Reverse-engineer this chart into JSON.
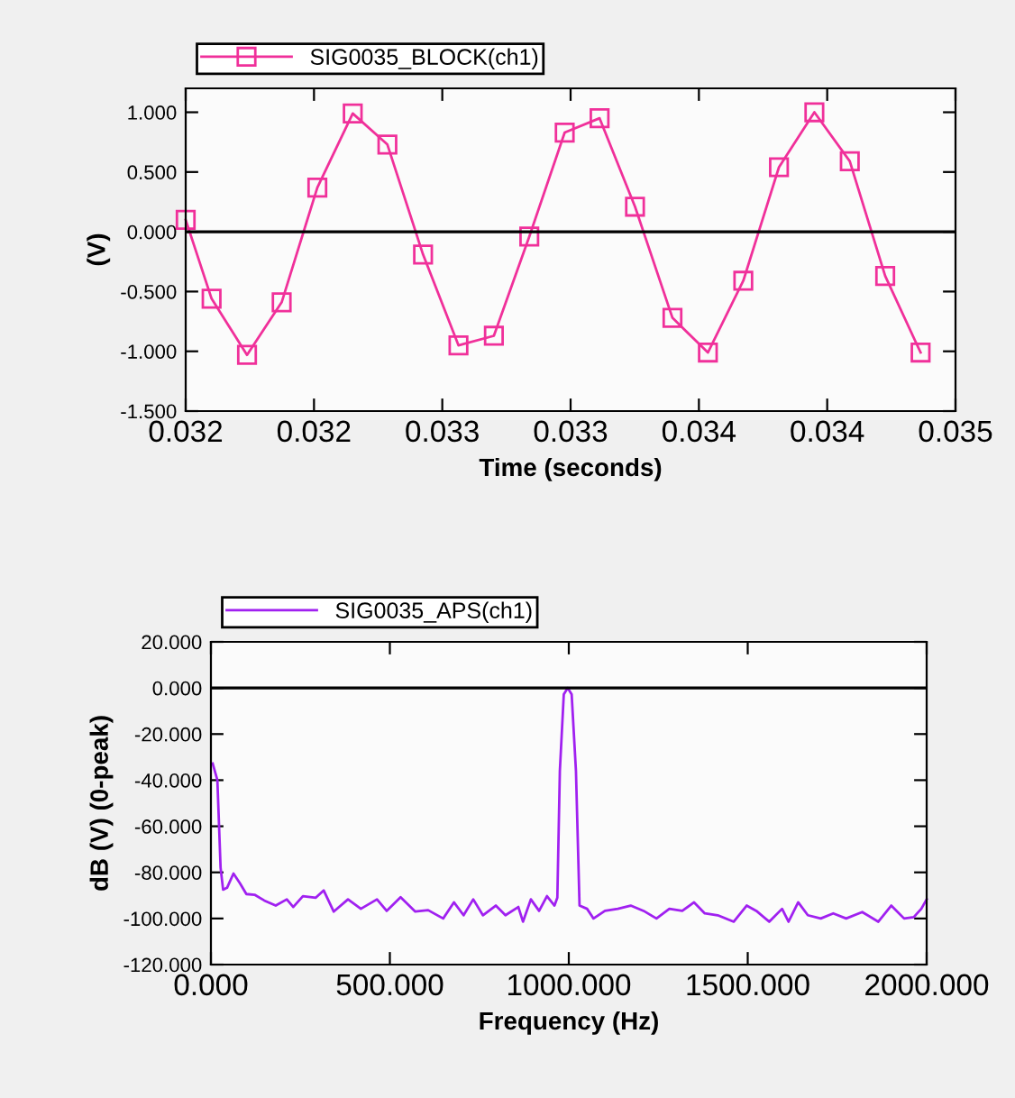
{
  "chart_data": [
    {
      "type": "line",
      "xlabel": "Time (seconds)",
      "ylabel": "(V)",
      "legend": "top",
      "marker": "square",
      "line_style": "solid",
      "x": [
        0.0315,
        0.031601,
        0.031739,
        0.031874,
        0.032013,
        0.032151,
        0.032286,
        0.032425,
        0.032563,
        0.032701,
        0.032839,
        0.032977,
        0.033113,
        0.033251,
        0.033397,
        0.033535,
        0.033673,
        0.033812,
        0.03395,
        0.034088,
        0.034226,
        0.034364
      ],
      "series": [
        {
          "name": "SIG0035_BLOCK(ch1)",
          "color": "#f0309a",
          "values": [
            0.1,
            -0.56,
            -1.03,
            -0.59,
            0.37,
            0.99,
            0.73,
            -0.19,
            -0.95,
            -0.87,
            -0.04,
            0.83,
            0.95,
            0.21,
            -0.72,
            -1.01,
            -0.41,
            0.54,
            1.0,
            0.59,
            -0.37,
            -1.01
          ]
        }
      ],
      "xlim": [
        0.0315,
        0.0345
      ],
      "ylim": [
        -1.5,
        1.2
      ],
      "xticks": [
        {
          "value": 0.0315,
          "label": "0.032"
        },
        {
          "value": 0.032,
          "label": "0.032"
        },
        {
          "value": 0.0325,
          "label": "0.033"
        },
        {
          "value": 0.033,
          "label": "0.033"
        },
        {
          "value": 0.0335,
          "label": "0.034"
        },
        {
          "value": 0.034,
          "label": "0.034"
        },
        {
          "value": 0.0345,
          "label": "0.035"
        }
      ],
      "yticks": [
        {
          "value": -1.5,
          "label": "-1.500"
        },
        {
          "value": -1.0,
          "label": "-1.000"
        },
        {
          "value": -0.5,
          "label": "-0.500"
        },
        {
          "value": 0,
          "label": "0.000"
        },
        {
          "value": 0.5,
          "label": "0.500"
        },
        {
          "value": 1.0,
          "label": "1.000"
        }
      ],
      "ref_lines": [
        {
          "axis": "y",
          "value": 0,
          "color": "#000000"
        }
      ]
    },
    {
      "type": "line",
      "xlabel": "Frequency (Hz)",
      "ylabel": "dB (V) (0-peak)",
      "legend": "top",
      "line_style": "solid",
      "x": [
        5,
        18,
        27,
        34,
        45,
        63,
        81,
        99,
        122,
        149,
        181,
        212,
        230,
        257,
        293,
        315,
        343,
        383,
        419,
        464,
        491,
        530,
        571,
        607,
        649,
        679,
        706,
        733,
        760,
        796,
        823,
        859,
        872,
        894,
        917,
        939,
        960,
        968,
        975,
        986,
        997,
        1008,
        1020,
        1030,
        1051,
        1069,
        1101,
        1137,
        1173,
        1209,
        1245,
        1281,
        1317,
        1350,
        1380,
        1416,
        1461,
        1497,
        1524,
        1560,
        1596,
        1614,
        1641,
        1668,
        1704,
        1739,
        1775,
        1820,
        1865,
        1901,
        1937,
        1964,
        1985,
        2000
      ],
      "series": [
        {
          "name": "SIG0035_APS(ch1)",
          "color": "#a020f0",
          "values": [
            -32.8,
            -40,
            -78,
            -87.5,
            -86.7,
            -80.5,
            -84.7,
            -89.4,
            -89.7,
            -92.2,
            -94.4,
            -91.7,
            -95,
            -90.3,
            -91,
            -87.8,
            -97,
            -91.7,
            -95.8,
            -91.7,
            -96.7,
            -90.8,
            -97,
            -96.4,
            -100,
            -93,
            -98.6,
            -91.7,
            -98.6,
            -94.4,
            -98.6,
            -95,
            -101.4,
            -91.7,
            -96.7,
            -90.3,
            -94.4,
            -91,
            -36,
            -2.8,
            0,
            -2.8,
            -36,
            -94.4,
            -95.8,
            -100,
            -96.7,
            -95.8,
            -94.4,
            -96.7,
            -100,
            -95.8,
            -96.7,
            -93,
            -97.8,
            -98.6,
            -101.4,
            -94.4,
            -96.7,
            -101.4,
            -95.8,
            -101.4,
            -93,
            -98.6,
            -100,
            -97.8,
            -100,
            -97.2,
            -101.4,
            -94.4,
            -100,
            -99.4,
            -95.8,
            -91.7
          ]
        }
      ],
      "xlim": [
        0,
        2000
      ],
      "ylim": [
        -120,
        20
      ],
      "xticks": [
        {
          "value": 0,
          "label": "0.000"
        },
        {
          "value": 500,
          "label": "500.000"
        },
        {
          "value": 1000,
          "label": "1000.000"
        },
        {
          "value": 1500,
          "label": "1500.000"
        },
        {
          "value": 2000,
          "label": "2000.000"
        }
      ],
      "yticks": [
        {
          "value": -120,
          "label": "-120.000"
        },
        {
          "value": -100,
          "label": "-100.000"
        },
        {
          "value": -80,
          "label": "-80.000"
        },
        {
          "value": -60,
          "label": "-60.000"
        },
        {
          "value": -40,
          "label": "-40.000"
        },
        {
          "value": -20,
          "label": "-20.000"
        },
        {
          "value": 0,
          "label": "0.000"
        },
        {
          "value": 20,
          "label": "20.000"
        }
      ],
      "ref_lines": [
        {
          "axis": "y",
          "value": 0,
          "color": "#000000"
        }
      ]
    }
  ]
}
